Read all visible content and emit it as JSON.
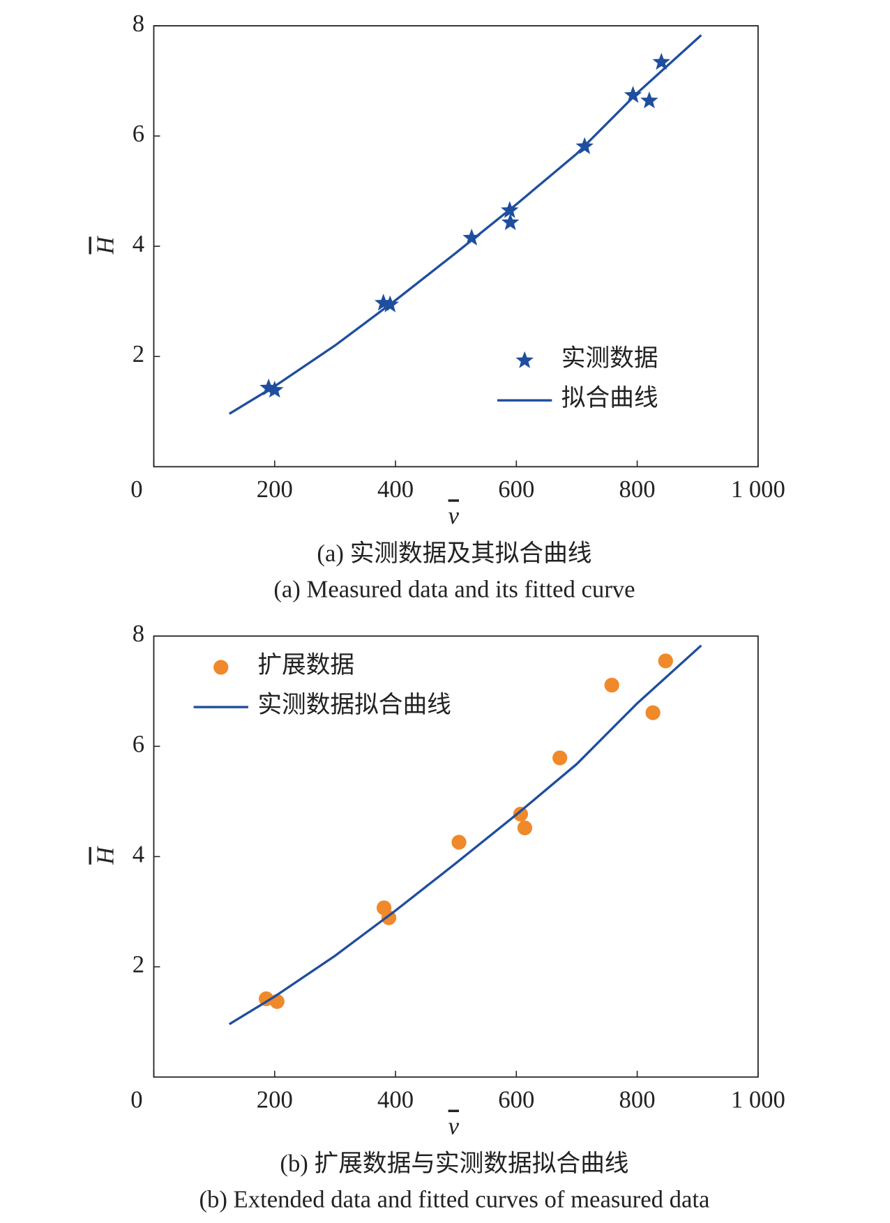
{
  "chart_data": [
    {
      "type": "scatter",
      "xlabel": "v",
      "ylabel": "H",
      "caption": "(a) 实测数据及其拟合曲线",
      "caption_en": "(a) Measured data and its fitted curve",
      "xlim": [
        0,
        1000
      ],
      "xticks": [
        0,
        200,
        400,
        600,
        800,
        {
          "value": 1000,
          "label": "1 000"
        }
      ],
      "ylim": [
        0,
        8
      ],
      "yticks": [
        2,
        4,
        6,
        8
      ],
      "legend": "lower right",
      "series": [
        {
          "name": "实测数据",
          "type": "scatter",
          "marker": "star",
          "color": "#1f4e9e",
          "x": [
            190,
            200,
            380,
            391,
            526,
            589,
            590,
            713,
            793,
            820,
            840
          ],
          "values": [
            1.43,
            1.39,
            2.97,
            2.94,
            4.15,
            4.65,
            4.43,
            5.81,
            6.74,
            6.64,
            7.34
          ]
        },
        {
          "name": "拟合曲线",
          "type": "line",
          "color": "#1f4e9e",
          "x": [
            125,
            200,
            300,
            400,
            500,
            600,
            700,
            800,
            906
          ],
          "values": [
            0.96,
            1.46,
            2.2,
            3.02,
            3.88,
            4.76,
            5.68,
            6.78,
            7.83
          ]
        }
      ]
    },
    {
      "type": "scatter",
      "xlabel": "v",
      "ylabel": "H",
      "caption": "(b) 扩展数据与实测数据拟合曲线",
      "caption_en": "(b) Extended data and fitted curves of measured data",
      "xlim": [
        0,
        1000
      ],
      "xticks": [
        0,
        200,
        400,
        600,
        800,
        {
          "value": 1000,
          "label": "1 000"
        }
      ],
      "ylim": [
        0,
        8
      ],
      "yticks": [
        2,
        4,
        6,
        8
      ],
      "legend": "upper left",
      "series": [
        {
          "name": "扩展数据",
          "type": "scatter",
          "marker": "circle",
          "color": "#f0892a",
          "x": [
            186,
            204,
            381,
            389,
            505,
            607,
            614,
            672,
            758,
            826,
            847
          ],
          "values": [
            1.42,
            1.37,
            3.07,
            2.89,
            4.26,
            4.77,
            4.52,
            5.79,
            7.11,
            6.61,
            7.55
          ]
        },
        {
          "name": "实测数据拟合曲线",
          "type": "line",
          "color": "#1f4e9e",
          "x": [
            125,
            200,
            300,
            400,
            500,
            600,
            700,
            800,
            906
          ],
          "values": [
            0.96,
            1.46,
            2.2,
            3.02,
            3.88,
            4.76,
            5.68,
            6.78,
            7.83
          ]
        }
      ]
    }
  ]
}
